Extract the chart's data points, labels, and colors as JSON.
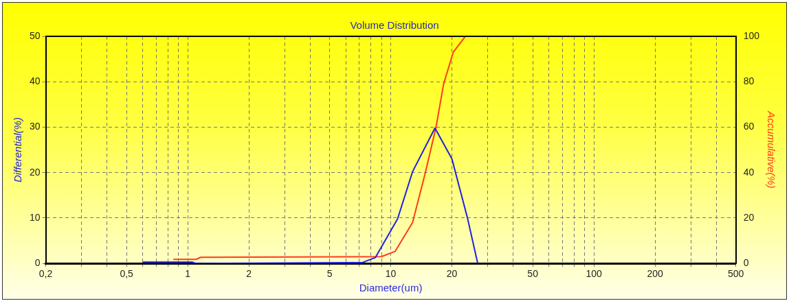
{
  "chart_data": {
    "type": "line",
    "title": "Volume Distribution",
    "xlabel": "Diameter(um)",
    "ylabel": "Differential(%)",
    "y2label": "Accumulative(%)",
    "log": "x",
    "grid": true,
    "legend": false,
    "marker": "none",
    "line_style": "solid",
    "xlim": [
      0.2,
      500
    ],
    "xticks": [
      {
        "value": 0.2,
        "label": "0,2"
      },
      {
        "value": 0.3,
        "label": null
      },
      {
        "value": 0.4,
        "label": null
      },
      {
        "value": 0.5,
        "label": "0,5"
      },
      {
        "value": 0.6,
        "label": null
      },
      {
        "value": 0.7,
        "label": null
      },
      {
        "value": 0.8,
        "label": null
      },
      {
        "value": 0.9,
        "label": null
      },
      1,
      2,
      {
        "value": 3,
        "label": null
      },
      {
        "value": 4,
        "label": null
      },
      5,
      {
        "value": 6,
        "label": null
      },
      {
        "value": 7,
        "label": null
      },
      {
        "value": 8,
        "label": null
      },
      {
        "value": 9,
        "label": null
      },
      10,
      20,
      {
        "value": 30,
        "label": null
      },
      {
        "value": 40,
        "label": null
      },
      50,
      {
        "value": 60,
        "label": null
      },
      {
        "value": 70,
        "label": null
      },
      {
        "value": 80,
        "label": null
      },
      {
        "value": 90,
        "label": null
      },
      100,
      200,
      {
        "value": 300,
        "label": null
      },
      {
        "value": 400,
        "label": null
      },
      500
    ],
    "ylim": [
      0,
      50
    ],
    "yticks": [
      0,
      10,
      20,
      30,
      40,
      50
    ],
    "y2lim": [
      0,
      100
    ],
    "y2ticks": [
      0,
      20,
      40,
      60,
      80,
      100
    ],
    "series": [
      {
        "color": "#2020e0",
        "x": [
          0.6,
          1.05,
          1.1,
          7.25,
          8.4,
          10.8,
          12.8,
          16.5,
          20,
          23.8,
          26.8
        ],
        "values": [
          0.3,
          0.3,
          0,
          0.2,
          1.3,
          9.8,
          20.2,
          29.8,
          23,
          10.2,
          0
        ]
      },
      {
        "color": "#ff3a1a",
        "axis": "y2",
        "x": [
          0.85,
          1.1,
          1.16,
          9,
          10.5,
          12.8,
          14.8,
          16.7,
          18.2,
          20.3,
          23.3
        ],
        "values": [
          1.8,
          1.8,
          2.7,
          3,
          5.3,
          18,
          40,
          60,
          79,
          93,
          100
        ]
      }
    ]
  }
}
